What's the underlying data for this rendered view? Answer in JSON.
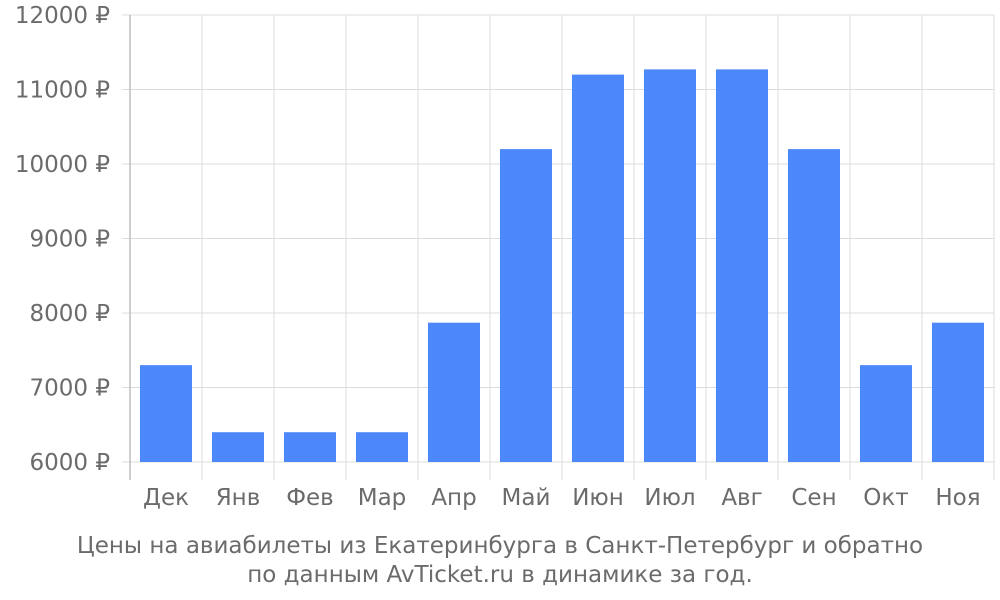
{
  "chart_data": {
    "type": "bar",
    "categories": [
      "Дек",
      "Янв",
      "Фев",
      "Мар",
      "Апр",
      "Май",
      "Июн",
      "Июл",
      "Авг",
      "Сен",
      "Окт",
      "Ноя"
    ],
    "values": [
      7300,
      6400,
      6400,
      6400,
      7870,
      10200,
      11200,
      11270,
      11270,
      10200,
      7300,
      7870
    ],
    "ylim": [
      6000,
      12000
    ],
    "yticks": [
      6000,
      7000,
      8000,
      9000,
      10000,
      11000,
      12000
    ],
    "ytick_labels": [
      "6000 ₽",
      "7000 ₽",
      "8000 ₽",
      "9000 ₽",
      "10000 ₽",
      "11000 ₽",
      "12000 ₽"
    ],
    "grid": true,
    "bar_color": "#4d88fa",
    "caption_lines": [
      "Цены на авиабилеты из Екатеринбурга в Санкт-Петербург и обратно",
      "по данным AvTicket.ru в динамике за год."
    ]
  }
}
